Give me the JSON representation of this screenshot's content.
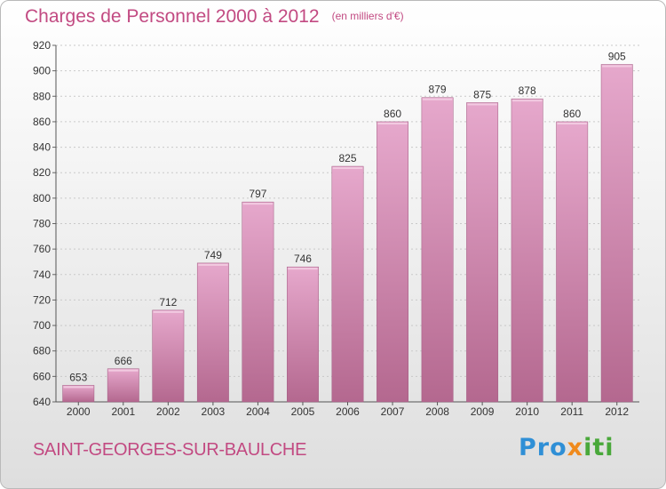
{
  "header": {
    "title": "Charges de Personnel 2000 à 2012",
    "unit": "(en milliers d'€)"
  },
  "footer": {
    "commune": "SAINT-GEORGES-SUR-BAULCHE",
    "brand": "Proxiti"
  },
  "colors": {
    "title": "#c24a82",
    "bar_light": "#e6a8cc",
    "bar_dark": "#b4688f",
    "bar_edge": "#a05a80"
  },
  "chart_data": {
    "type": "bar",
    "title": "Charges de Personnel 2000 à 2012",
    "subtitle": "(en milliers d'€)",
    "categories": [
      "2000",
      "2001",
      "2002",
      "2003",
      "2004",
      "2005",
      "2006",
      "2007",
      "2008",
      "2009",
      "2010",
      "2011",
      "2012"
    ],
    "values": [
      653,
      666,
      712,
      749,
      797,
      746,
      825,
      860,
      879,
      875,
      878,
      860,
      905
    ],
    "ylim": [
      640,
      920
    ],
    "yticks": [
      640,
      660,
      680,
      700,
      720,
      740,
      760,
      780,
      800,
      820,
      840,
      860,
      880,
      900,
      920
    ],
    "grid": true,
    "legend": "none"
  }
}
